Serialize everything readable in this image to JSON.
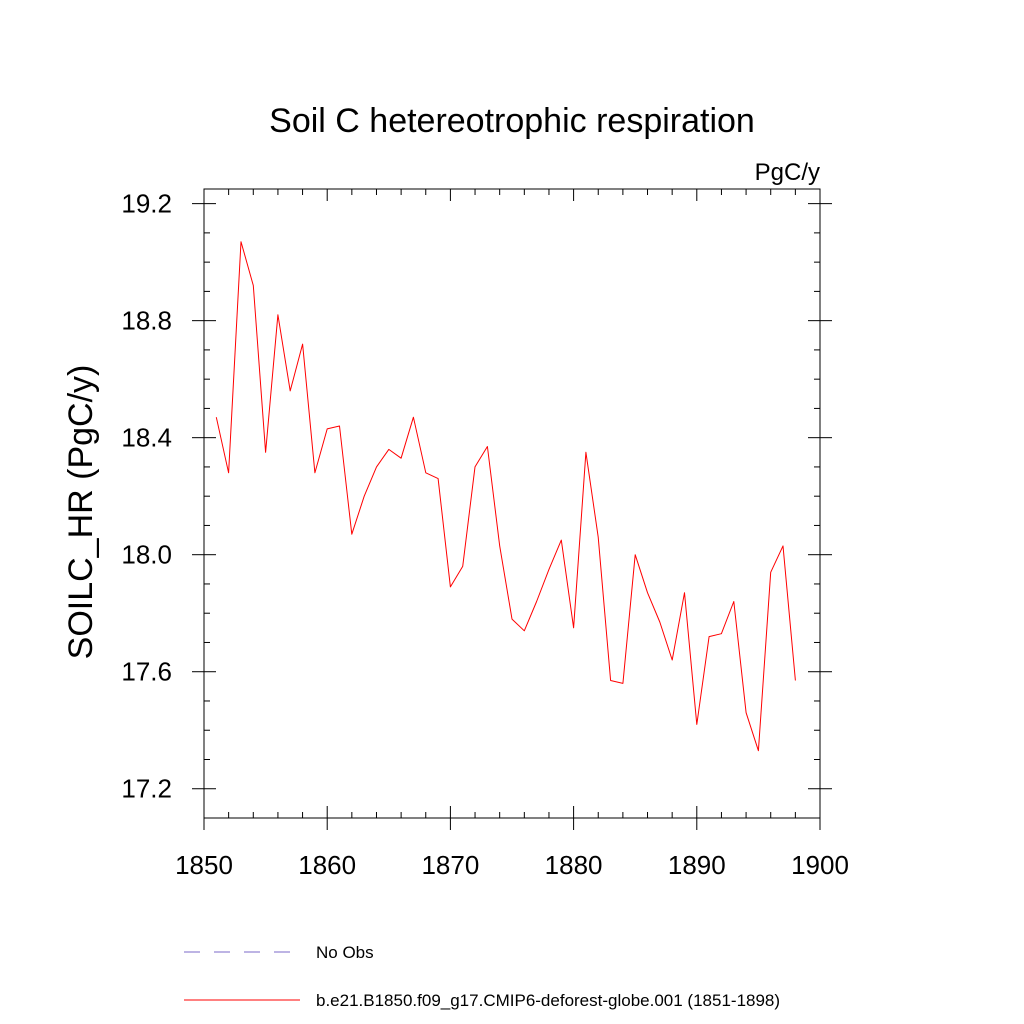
{
  "chart_data": {
    "type": "line",
    "title": "Soil C hetereotrophic respiration",
    "units_label": "PgC/y",
    "xlabel": "",
    "ylabel": "SOILC_HR  (PgC/y)",
    "xlim": [
      1850,
      1900
    ],
    "ylim": [
      17.1,
      19.25
    ],
    "x_ticks": [
      1850,
      1860,
      1870,
      1880,
      1890,
      1900
    ],
    "y_ticks": [
      17.2,
      17.6,
      18.0,
      18.4,
      18.8,
      19.2
    ],
    "y_tick_labels": [
      "17.2",
      "17.6",
      "18.0",
      "18.4",
      "18.8",
      "19.2"
    ],
    "series": [
      {
        "name": "b.e21.B1850.f09_g17.CMIP6-deforest-globe.001 (1851-1898)",
        "color": "#ff0000",
        "x": [
          1851,
          1852,
          1853,
          1854,
          1855,
          1856,
          1857,
          1858,
          1859,
          1860,
          1861,
          1862,
          1863,
          1864,
          1865,
          1866,
          1867,
          1868,
          1869,
          1870,
          1871,
          1872,
          1873,
          1874,
          1875,
          1876,
          1877,
          1878,
          1879,
          1880,
          1881,
          1882,
          1883,
          1884,
          1885,
          1886,
          1887,
          1888,
          1889,
          1890,
          1891,
          1892,
          1893,
          1894,
          1895,
          1896,
          1897,
          1898
        ],
        "values": [
          18.47,
          18.28,
          19.07,
          18.92,
          18.35,
          18.82,
          18.56,
          18.72,
          18.28,
          18.43,
          18.44,
          18.07,
          18.2,
          18.3,
          18.36,
          18.33,
          18.47,
          18.28,
          18.26,
          17.89,
          17.96,
          18.3,
          18.37,
          18.03,
          17.78,
          17.74,
          17.84,
          17.95,
          18.05,
          17.75,
          18.35,
          18.06,
          17.57,
          17.56,
          18.0,
          17.87,
          17.77,
          17.64,
          17.87,
          17.42,
          17.72,
          17.73,
          17.84,
          17.46,
          17.33,
          17.94,
          18.03,
          17.57
        ]
      }
    ],
    "legend": [
      {
        "label": "No Obs",
        "color": "#7b68c8",
        "style": "dashed"
      },
      {
        "label": "b.e21.B1850.f09_g17.CMIP6-deforest-globe.001 (1851-1898)",
        "color": "#ff0000",
        "style": "solid"
      }
    ],
    "legend_position": "bottom-center"
  }
}
